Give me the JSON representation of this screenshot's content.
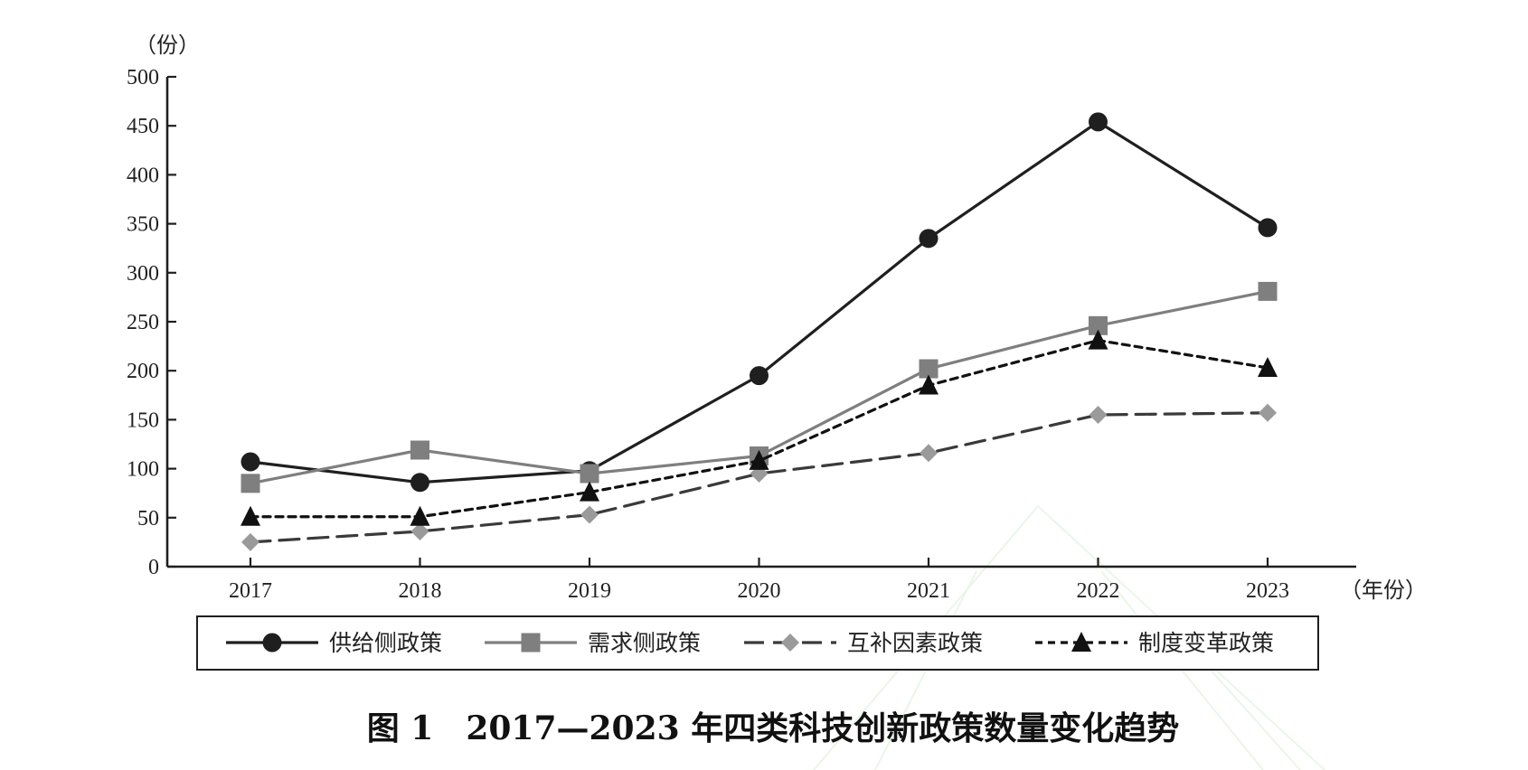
{
  "figure": {
    "caption": "图 1　2017—2023 年四类科技创新政策数量变化趋势"
  },
  "chart_data": {
    "type": "line",
    "title": "图 1　2017—2023 年四类科技创新政策数量变化趋势",
    "xlabel": "（年份）",
    "ylabel": "（份）",
    "x": [
      "2017",
      "2018",
      "2019",
      "2020",
      "2021",
      "2022",
      "2023"
    ],
    "ylim": [
      0,
      500
    ],
    "yticks": [
      0,
      50,
      100,
      150,
      200,
      250,
      300,
      350,
      400,
      450,
      500
    ],
    "grid": false,
    "legend_position": "bottom",
    "series": [
      {
        "name": "供给侧政策",
        "values": [
          107,
          86,
          98,
          195,
          335,
          454,
          346
        ],
        "color": "#1f1f1f",
        "marker": "circle",
        "line_style": "solid"
      },
      {
        "name": "需求侧政策",
        "values": [
          85,
          119,
          95,
          113,
          202,
          246,
          281
        ],
        "color": "#7f7f7f",
        "marker": "square",
        "line_style": "solid"
      },
      {
        "name": "互补因素政策",
        "values": [
          25,
          36,
          53,
          95,
          116,
          155,
          157
        ],
        "color": "#9a9a9a",
        "line_color": "#3a3a3a",
        "marker": "diamond",
        "line_style": "long-dash"
      },
      {
        "name": "制度变革政策",
        "values": [
          51,
          51,
          76,
          108,
          185,
          231,
          203
        ],
        "color": "#111111",
        "marker": "triangle",
        "line_style": "short-dash"
      }
    ]
  }
}
